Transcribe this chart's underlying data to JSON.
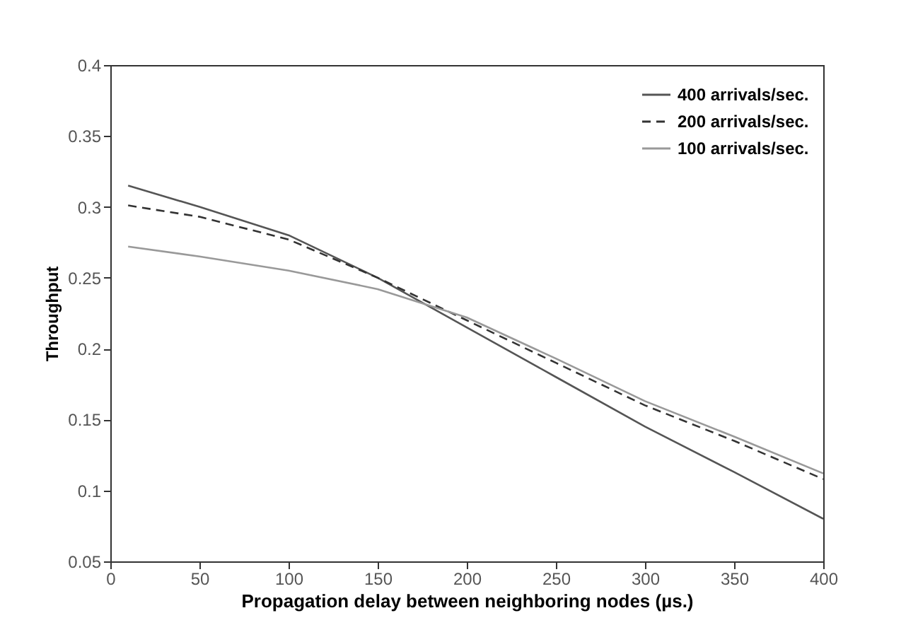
{
  "chart_data": {
    "type": "line",
    "xlabel": "Propagation delay between neighboring nodes (µs.)",
    "ylabel": "Throughput",
    "xlim": [
      0,
      400
    ],
    "xticks": [
      0,
      50,
      100,
      150,
      200,
      250,
      300,
      350,
      400
    ],
    "ylim": [
      0.05,
      0.4
    ],
    "yticks": [
      0.05,
      0.1,
      0.15,
      0.2,
      0.25,
      0.3,
      0.35,
      0.4
    ],
    "grid": false,
    "legend": "top right",
    "series": [
      {
        "name": "400 arrivals/sec.",
        "color": "#555555",
        "line_style": "solid",
        "x": [
          10,
          50,
          100,
          150,
          200,
          250,
          300,
          350,
          400
        ],
        "values": [
          0.315,
          0.3,
          0.28,
          0.25,
          0.215,
          0.18,
          0.145,
          0.113,
          0.08
        ]
      },
      {
        "name": "200 arrivals/sec.",
        "color": "#333333",
        "line_style": "dashed",
        "x": [
          10,
          50,
          100,
          150,
          200,
          250,
          300,
          350,
          400
        ],
        "values": [
          0.301,
          0.293,
          0.277,
          0.25,
          0.22,
          0.19,
          0.16,
          0.135,
          0.108
        ]
      },
      {
        "name": "100 arrivals/sec.",
        "color": "#999999",
        "line_style": "solid",
        "x": [
          10,
          50,
          100,
          150,
          175,
          200,
          250,
          300,
          350,
          400
        ],
        "values": [
          0.272,
          0.265,
          0.255,
          0.242,
          0.232,
          0.222,
          0.193,
          0.163,
          0.138,
          0.112
        ]
      }
    ]
  }
}
